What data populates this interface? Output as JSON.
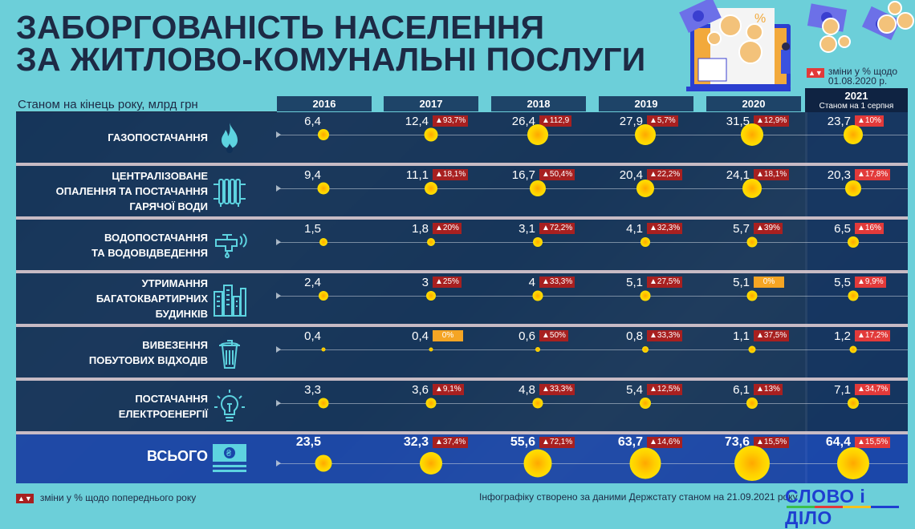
{
  "header": {
    "title_line1": "ЗАБОРГОВАНІСТЬ НАСЕЛЕННЯ",
    "title_line2": "ЗА ЖИТЛОВО-КОМУНАЛЬНІ ПОСЛУГИ",
    "subtitle": "Станом на кінець року, млрд грн",
    "legend_2021_line1": "зміни у % щодо",
    "legend_2021_line2": "01.08.2020 р.",
    "arrows_glyph": "▲▼"
  },
  "years": [
    "2016",
    "2017",
    "2018",
    "2019",
    "2020"
  ],
  "year_2021": {
    "label": "2021",
    "sub": "Станом на 1 серпня"
  },
  "footer": {
    "legend": "зміни у % щодо попереднього року",
    "source": "Інфографіку створено за даними Держстату станом на 21.09.2021 року",
    "logo": "СЛОВО і ДІЛО"
  },
  "chart_data": {
    "type": "table",
    "title": "Заборгованість населення за житлово-комунальні послуги",
    "subtitle": "Станом на кінець року, млрд грн",
    "categories": [
      "2016",
      "2017",
      "2018",
      "2019",
      "2020",
      "2021 (станом на 1 серпня)"
    ],
    "series": [
      {
        "name": "Газопостачання",
        "icon": "flame-icon",
        "values": [
          "6,4",
          "12,4",
          "26,4",
          "27,9",
          "31,5",
          "23,7"
        ],
        "changes": [
          "",
          "▲93,7%",
          "▲112,9",
          "▲5,7%",
          "▲12,9%",
          "▲10%"
        ]
      },
      {
        "name": "Централізоване опалення та постачання гарячої води",
        "icon": "radiator-icon",
        "values": [
          "9,4",
          "11,1",
          "16,7",
          "20,4",
          "24,1",
          "20,3"
        ],
        "changes": [
          "",
          "▲18,1%",
          "▲50,4%",
          "▲22,2%",
          "▲18,1%",
          "▲17,8%"
        ]
      },
      {
        "name": "Водопостачання та водовідведення",
        "icon": "water-tap-icon",
        "values": [
          "1,5",
          "1,8",
          "3,1",
          "4,1",
          "5,7",
          "6,5"
        ],
        "changes": [
          "",
          "▲20%",
          "▲72,2%",
          "▲32,3%",
          "▲39%",
          "▲16%"
        ]
      },
      {
        "name": "Утримання багатоквартирних будинків",
        "icon": "buildings-icon",
        "values": [
          "2,4",
          "3",
          "4",
          "5,1",
          "5,1",
          "5,5"
        ],
        "changes": [
          "",
          "▲25%",
          "▲33,3%",
          "▲27,5%",
          "0%",
          "▲9,9%"
        ]
      },
      {
        "name": "Вивезення побутових відходів",
        "icon": "trash-bin-icon",
        "values": [
          "0,4",
          "0,4",
          "0,6",
          "0,8",
          "1,1",
          "1,2"
        ],
        "changes": [
          "",
          "0%",
          "▲50%",
          "▲33,3%",
          "▲37,5%",
          "▲17,2%"
        ]
      },
      {
        "name": "Постачання електроенергії",
        "icon": "light-bulb-icon",
        "values": [
          "3,3",
          "3,6",
          "4,8",
          "5,4",
          "6,1",
          "7,1"
        ],
        "changes": [
          "",
          "▲9,1%",
          "▲33,3%",
          "▲12,5%",
          "▲13%",
          "▲34,7%"
        ]
      },
      {
        "name": "Всього",
        "icon": "banknote-icon",
        "values": [
          "23,5",
          "32,3",
          "55,6",
          "63,7",
          "73,6",
          "64,4"
        ],
        "changes": [
          "",
          "▲37,4%",
          "▲72,1%",
          "▲14,6%",
          "▲15,5%",
          "▲15,5%"
        ]
      }
    ],
    "unit": "млрд грн",
    "colors": {
      "bubble": "#ffe600",
      "increase_badge": "#a82020",
      "increase_badge_2021": "#e23a3a",
      "zero_badge": "#f5a524"
    }
  },
  "rows": [
    {
      "label_lines": [
        "ГАЗОПОСТАЧАННЯ"
      ],
      "values": [
        "6,4",
        "12,4",
        "26,4",
        "27,9",
        "31,5",
        "23,7"
      ],
      "changes": [
        "",
        "▲93,7%",
        "▲112,9",
        "▲5,7%",
        "▲12,9%",
        "▲10%"
      ],
      "sizes": [
        14,
        17,
        26,
        26,
        28,
        24
      ]
    },
    {
      "label_lines": [
        "ЦЕНТРАЛІЗОВАНЕ",
        "ОПАЛЕННЯ ТА ПОСТАЧАННЯ",
        "ГАРЯЧОЇ ВОДИ"
      ],
      "values": [
        "9,4",
        "11,1",
        "16,7",
        "20,4",
        "24,1",
        "20,3"
      ],
      "changes": [
        "",
        "▲18,1%",
        "▲50,4%",
        "▲22,2%",
        "▲18,1%",
        "▲17,8%"
      ],
      "sizes": [
        15,
        16,
        20,
        22,
        24,
        20
      ]
    },
    {
      "label_lines": [
        "ВОДОПОСТАЧАННЯ",
        "ТА ВОДОВІДВЕДЕННЯ"
      ],
      "values": [
        "1,5",
        "1,8",
        "3,1",
        "4,1",
        "5,7",
        "6,5"
      ],
      "changes": [
        "",
        "▲20%",
        "▲72,2%",
        "▲32,3%",
        "▲39%",
        "▲16%"
      ],
      "sizes": [
        10,
        10,
        12,
        12,
        13,
        14
      ]
    },
    {
      "label_lines": [
        "УТРИМАННЯ",
        "БАГАТОКВАРТИРНИХ",
        "БУДИНКІВ"
      ],
      "values": [
        "2,4",
        "3",
        "4",
        "5,1",
        "5,1",
        "5,5"
      ],
      "changes": [
        "",
        "▲25%",
        "▲33,3%",
        "▲27,5%",
        "0%",
        "▲9,9%"
      ],
      "sizes": [
        12,
        12,
        13,
        13,
        13,
        13
      ]
    },
    {
      "label_lines": [
        "ВИВЕЗЕННЯ",
        "ПОБУТОВИХ ВІДХОДІВ"
      ],
      "values": [
        "0,4",
        "0,4",
        "0,6",
        "0,8",
        "1,1",
        "1,2"
      ],
      "changes": [
        "",
        "0%",
        "▲50%",
        "▲33,3%",
        "▲37,5%",
        "▲17,2%"
      ],
      "sizes": [
        5,
        5,
        6,
        8,
        9,
        9
      ]
    },
    {
      "label_lines": [
        "ПОСТАЧАННЯ",
        "ЕЛЕКТРОЕНЕРГІЇ"
      ],
      "values": [
        "3,3",
        "3,6",
        "4,8",
        "5,4",
        "6,1",
        "7,1"
      ],
      "changes": [
        "",
        "▲9,1%",
        "▲33,3%",
        "▲12,5%",
        "▲13%",
        "▲34,7%"
      ],
      "sizes": [
        13,
        13,
        13,
        14,
        14,
        14
      ]
    },
    {
      "label_lines": [
        "ВСЬОГО"
      ],
      "values": [
        "23,5",
        "32,3",
        "55,6",
        "63,7",
        "73,6",
        "64,4"
      ],
      "changes": [
        "",
        "▲37,4%",
        "▲72,1%",
        "▲14,6%",
        "▲15,5%",
        "▲15,5%"
      ],
      "sizes": [
        21,
        28,
        35,
        39,
        44,
        40
      ]
    }
  ]
}
